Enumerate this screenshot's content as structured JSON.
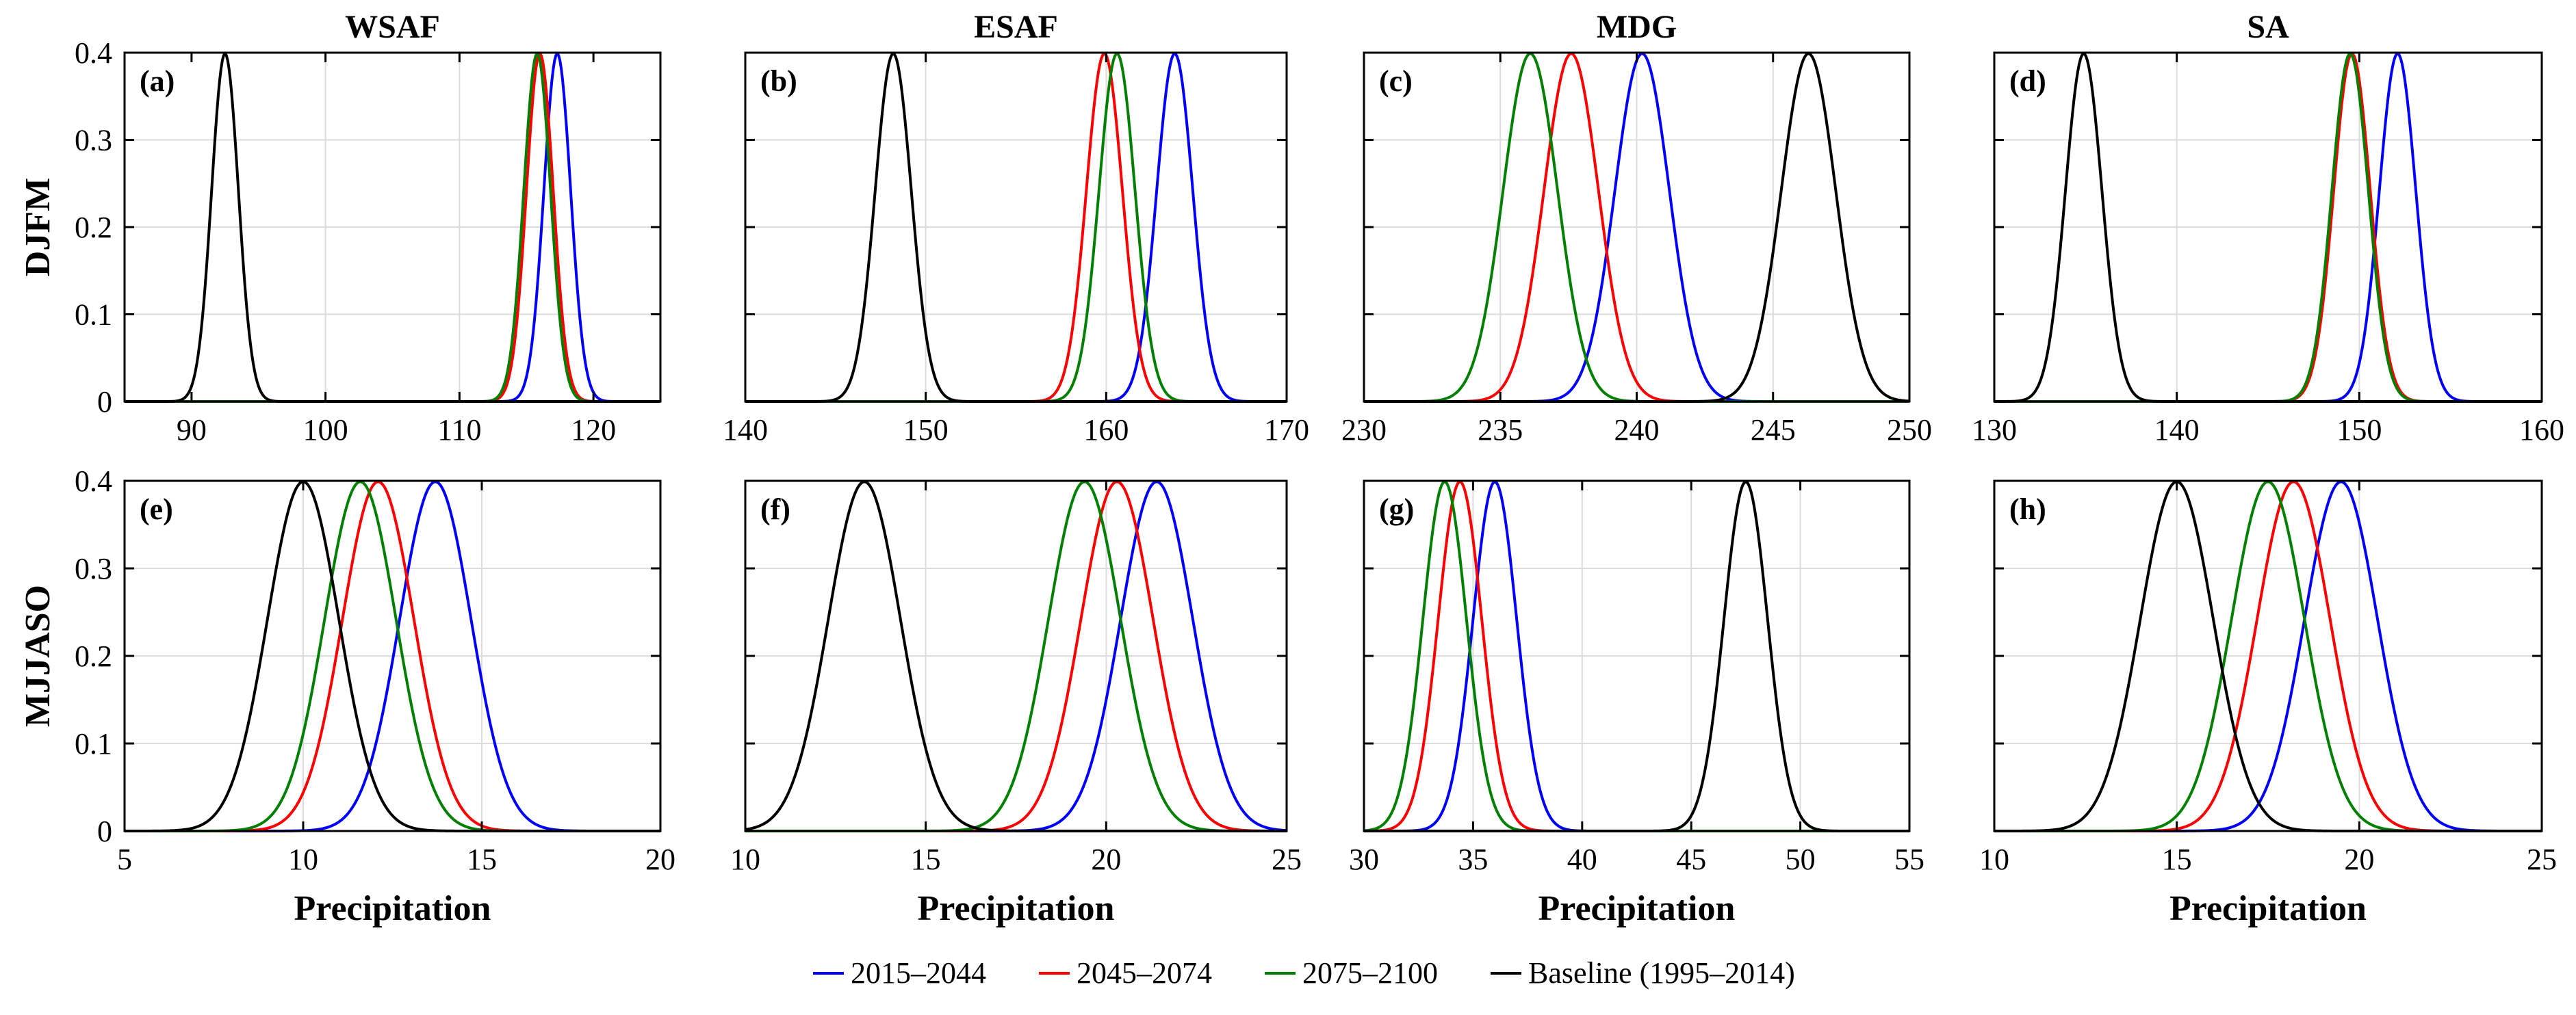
{
  "chart_data": {
    "type": "line",
    "legend": {
      "position": "bottom-center",
      "entries": [
        {
          "label": "2015–2044",
          "color": "#0000ff"
        },
        {
          "label": "2045–2074",
          "color": "#ff0000"
        },
        {
          "label": "2075–2100",
          "color": "#008000"
        },
        {
          "label": "Baseline (1995–2014)",
          "color": "#000000"
        }
      ]
    },
    "columns": [
      "WSAF",
      "ESAF",
      "MDG",
      "SA"
    ],
    "rows": [
      "DJFM",
      "MJJASO"
    ],
    "xlabel": "Precipitation",
    "grid": true,
    "panels": [
      {
        "label": "(a)",
        "column": "WSAF",
        "row": "DJFM",
        "xlim": [
          85,
          125
        ],
        "xticks": [
          90,
          100,
          110,
          120
        ],
        "ylim": [
          0,
          0.4
        ],
        "yticks": [
          "0",
          "0.1",
          "0.2",
          "0.3",
          "0.4"
        ],
        "curves": [
          {
            "period": "2015–2044",
            "mean": 117.3,
            "sd": 1.0
          },
          {
            "period": "2045–2074",
            "mean": 116.0,
            "sd": 1.0
          },
          {
            "period": "2075–2100",
            "mean": 115.8,
            "sd": 1.0
          },
          {
            "period": "Baseline (1995–2014)",
            "mean": 92.5,
            "sd": 1.0
          }
        ]
      },
      {
        "label": "(b)",
        "column": "ESAF",
        "row": "DJFM",
        "xlim": [
          140,
          170
        ],
        "xticks": [
          140,
          150,
          160,
          170
        ],
        "ylim": [
          0,
          0.4
        ],
        "yticks": [],
        "curves": [
          {
            "period": "2015–2044",
            "mean": 163.8,
            "sd": 1.0
          },
          {
            "period": "2045–2074",
            "mean": 159.9,
            "sd": 1.0
          },
          {
            "period": "2075–2100",
            "mean": 160.6,
            "sd": 1.0
          },
          {
            "period": "Baseline (1995–2014)",
            "mean": 148.2,
            "sd": 1.0
          }
        ]
      },
      {
        "label": "(c)",
        "column": "MDG",
        "row": "DJFM",
        "xlim": [
          230,
          250
        ],
        "xticks": [
          230,
          235,
          240,
          245,
          250
        ],
        "ylim": [
          0,
          0.4
        ],
        "yticks": [],
        "curves": [
          {
            "period": "2015–2044",
            "mean": 240.2,
            "sd": 1.0
          },
          {
            "period": "2045–2074",
            "mean": 237.6,
            "sd": 1.0
          },
          {
            "period": "2075–2100",
            "mean": 236.1,
            "sd": 1.0
          },
          {
            "period": "Baseline (1995–2014)",
            "mean": 246.3,
            "sd": 1.0
          }
        ]
      },
      {
        "label": "(d)",
        "column": "SA",
        "row": "DJFM",
        "xlim": [
          130,
          160
        ],
        "xticks": [
          130,
          140,
          150,
          160
        ],
        "ylim": [
          0,
          0.4
        ],
        "yticks": [],
        "curves": [
          {
            "period": "2015–2044",
            "mean": 152.1,
            "sd": 1.0
          },
          {
            "period": "2045–2074",
            "mean": 149.6,
            "sd": 1.0
          },
          {
            "period": "2075–2100",
            "mean": 149.5,
            "sd": 1.0
          },
          {
            "period": "Baseline (1995–2014)",
            "mean": 134.9,
            "sd": 1.0
          }
        ]
      },
      {
        "label": "(e)",
        "column": "WSAF",
        "row": "MJJASO",
        "xlim": [
          5,
          20
        ],
        "xticks": [
          5,
          10,
          15,
          20
        ],
        "ylim": [
          0,
          0.4
        ],
        "yticks": [
          "0",
          "0.1",
          "0.2",
          "0.3",
          "0.4"
        ],
        "curves": [
          {
            "period": "2015–2044",
            "mean": 13.7,
            "sd": 1.0
          },
          {
            "period": "2045–2074",
            "mean": 12.1,
            "sd": 1.0
          },
          {
            "period": "2075–2100",
            "mean": 11.6,
            "sd": 1.0
          },
          {
            "period": "Baseline (1995–2014)",
            "mean": 10.0,
            "sd": 1.0
          }
        ]
      },
      {
        "label": "(f)",
        "column": "ESAF",
        "row": "MJJASO",
        "xlim": [
          10,
          25
        ],
        "xticks": [
          10,
          15,
          20,
          25
        ],
        "ylim": [
          0,
          0.4
        ],
        "yticks": [],
        "curves": [
          {
            "period": "2015–2044",
            "mean": 21.4,
            "sd": 1.0
          },
          {
            "period": "2045–2074",
            "mean": 20.3,
            "sd": 1.0
          },
          {
            "period": "2075–2100",
            "mean": 19.4,
            "sd": 1.0
          },
          {
            "period": "Baseline (1995–2014)",
            "mean": 13.3,
            "sd": 1.0
          }
        ]
      },
      {
        "label": "(g)",
        "column": "MDG",
        "row": "MJJASO",
        "xlim": [
          30,
          55
        ],
        "xticks": [
          30,
          35,
          40,
          45,
          50,
          55
        ],
        "ylim": [
          0,
          0.4
        ],
        "yticks": [],
        "curves": [
          {
            "period": "2015–2044",
            "mean": 36.0,
            "sd": 1.0
          },
          {
            "period": "2045–2074",
            "mean": 34.4,
            "sd": 1.0
          },
          {
            "period": "2075–2100",
            "mean": 33.7,
            "sd": 1.0
          },
          {
            "period": "Baseline (1995–2014)",
            "mean": 47.5,
            "sd": 1.0
          }
        ]
      },
      {
        "label": "(h)",
        "column": "SA",
        "row": "MJJASO",
        "xlim": [
          10,
          25
        ],
        "xticks": [
          10,
          15,
          20,
          25
        ],
        "ylim": [
          0,
          0.4
        ],
        "yticks": [],
        "curves": [
          {
            "period": "2015–2044",
            "mean": 19.5,
            "sd": 1.0
          },
          {
            "period": "2045–2074",
            "mean": 18.2,
            "sd": 1.0
          },
          {
            "period": "2075–2100",
            "mean": 17.5,
            "sd": 1.0
          },
          {
            "period": "Baseline (1995–2014)",
            "mean": 15.0,
            "sd": 1.0
          }
        ]
      }
    ]
  }
}
